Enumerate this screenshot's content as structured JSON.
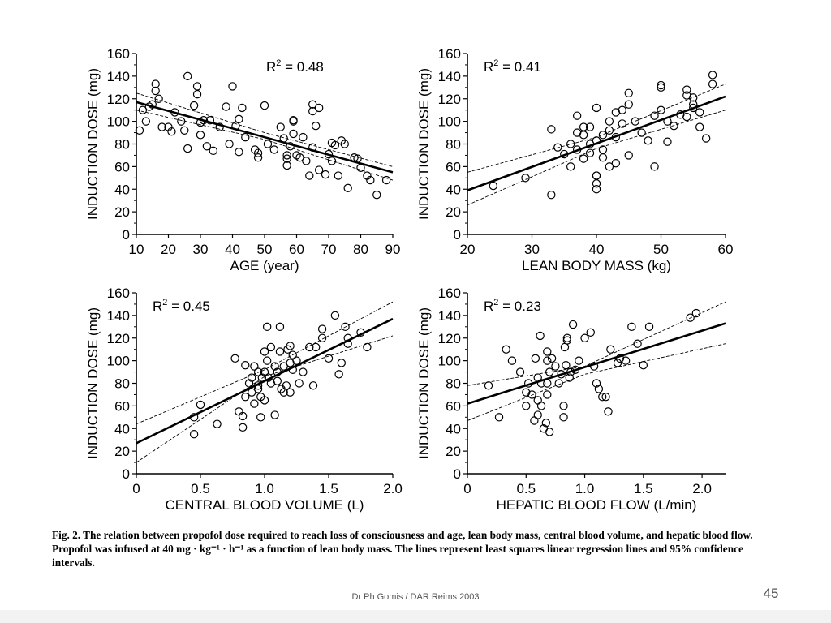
{
  "slide": {
    "caption": "Fig. 2. The relation between propofol dose required to reach loss of consciousness and age, lean body mass, central blood volume, and hepatic blood flow. Propofol was infused at 40 mg · kg⁻¹ · h⁻¹ as a function of lean body mass. The lines represent least squares linear regression lines and 95% confidence intervals.",
    "footer": "Dr Ph Gomis / DAR Reims 2003",
    "page_number": "45"
  },
  "chart_data": [
    {
      "type": "scatter",
      "ylabel": "INDUCTION DOSE (mg)",
      "xlabel": "AGE (year)",
      "r2_label": "R",
      "r2_sup": "2",
      "r2_value": " = 0.48",
      "xlim": [
        10,
        90
      ],
      "ylim": [
        0,
        160
      ],
      "xticks": [
        10,
        20,
        30,
        40,
        50,
        60,
        70,
        80,
        90
      ],
      "yticks": [
        0,
        20,
        40,
        60,
        80,
        100,
        120,
        140,
        160
      ],
      "regression": [
        [
          10,
          117
        ],
        [
          90,
          55
        ]
      ],
      "ci_upper": [
        [
          10,
          125
        ],
        [
          50,
          90
        ],
        [
          90,
          60
        ]
      ],
      "ci_lower": [
        [
          10,
          110
        ],
        [
          50,
          84
        ],
        [
          90,
          48
        ]
      ],
      "points": [
        [
          11,
          92
        ],
        [
          12,
          110
        ],
        [
          13,
          100
        ],
        [
          14,
          113
        ],
        [
          15,
          115
        ],
        [
          16,
          127
        ],
        [
          16,
          133
        ],
        [
          17,
          120
        ],
        [
          18,
          95
        ],
        [
          20,
          95
        ],
        [
          21,
          91
        ],
        [
          22,
          108
        ],
        [
          24,
          100
        ],
        [
          25,
          92
        ],
        [
          26,
          140
        ],
        [
          26,
          76
        ],
        [
          28,
          114
        ],
        [
          29,
          124
        ],
        [
          29,
          131
        ],
        [
          30,
          99
        ],
        [
          30,
          88
        ],
        [
          31,
          101
        ],
        [
          32,
          78
        ],
        [
          33,
          101
        ],
        [
          34,
          74
        ],
        [
          36,
          95
        ],
        [
          38,
          113
        ],
        [
          39,
          80
        ],
        [
          40,
          131
        ],
        [
          41,
          96
        ],
        [
          42,
          102
        ],
        [
          42,
          73
        ],
        [
          43,
          112
        ],
        [
          44,
          86
        ],
        [
          47,
          75
        ],
        [
          48,
          72
        ],
        [
          48,
          68
        ],
        [
          50,
          114
        ],
        [
          51,
          80
        ],
        [
          53,
          75
        ],
        [
          55,
          95
        ],
        [
          56,
          85
        ],
        [
          57,
          70
        ],
        [
          57,
          67
        ],
        [
          57,
          61
        ],
        [
          58,
          78
        ],
        [
          59,
          89
        ],
        [
          59,
          100
        ],
        [
          59,
          101
        ],
        [
          60,
          70
        ],
        [
          61,
          68
        ],
        [
          62,
          86
        ],
        [
          63,
          65
        ],
        [
          64,
          52
        ],
        [
          65,
          115
        ],
        [
          65,
          109
        ],
        [
          65,
          77
        ],
        [
          66,
          96
        ],
        [
          67,
          112
        ],
        [
          67,
          57
        ],
        [
          69,
          53
        ],
        [
          70,
          71
        ],
        [
          71,
          81
        ],
        [
          71,
          65
        ],
        [
          72,
          79
        ],
        [
          73,
          52
        ],
        [
          74,
          83
        ],
        [
          75,
          80
        ],
        [
          76,
          41
        ],
        [
          78,
          68
        ],
        [
          79,
          67
        ],
        [
          80,
          59
        ],
        [
          82,
          52
        ],
        [
          83,
          48
        ],
        [
          85,
          35
        ],
        [
          88,
          48
        ]
      ]
    },
    {
      "type": "scatter",
      "ylabel": "INDUCTION DOSE (mg)",
      "xlabel": "LEAN BODY MASS (kg)",
      "r2_label": "R",
      "r2_sup": "2",
      "r2_value": " = 0.41",
      "xlim": [
        20,
        60
      ],
      "ylim": [
        0,
        160
      ],
      "xticks": [
        20,
        30,
        40,
        50,
        60
      ],
      "yticks": [
        0,
        20,
        40,
        60,
        80,
        100,
        120,
        140,
        160
      ],
      "regression": [
        [
          20,
          39
        ],
        [
          60,
          122
        ]
      ],
      "ci_upper": [
        [
          20,
          55
        ],
        [
          40,
          86
        ],
        [
          60,
          133
        ]
      ],
      "ci_lower": [
        [
          20,
          26
        ],
        [
          40,
          76
        ],
        [
          60,
          110
        ]
      ],
      "points": [
        [
          24,
          43
        ],
        [
          29,
          50
        ],
        [
          33,
          35
        ],
        [
          33,
          93
        ],
        [
          34,
          77
        ],
        [
          35,
          71
        ],
        [
          36,
          60
        ],
        [
          36,
          80
        ],
        [
          37,
          90
        ],
        [
          37,
          75
        ],
        [
          37,
          105
        ],
        [
          38,
          95
        ],
        [
          38,
          88
        ],
        [
          38,
          67
        ],
        [
          39,
          72
        ],
        [
          39,
          95
        ],
        [
          39,
          80
        ],
        [
          40,
          83
        ],
        [
          40,
          52
        ],
        [
          40,
          52
        ],
        [
          40,
          45
        ],
        [
          40,
          40
        ],
        [
          40,
          112
        ],
        [
          41,
          75
        ],
        [
          41,
          88
        ],
        [
          41,
          68
        ],
        [
          42,
          100
        ],
        [
          42,
          92
        ],
        [
          42,
          60
        ],
        [
          43,
          63
        ],
        [
          43,
          86
        ],
        [
          43,
          108
        ],
        [
          44,
          110
        ],
        [
          44,
          98
        ],
        [
          45,
          70
        ],
        [
          45,
          115
        ],
        [
          45,
          125
        ],
        [
          46,
          100
        ],
        [
          47,
          90
        ],
        [
          48,
          83
        ],
        [
          49,
          105
        ],
        [
          49,
          60
        ],
        [
          50,
          110
        ],
        [
          50,
          130
        ],
        [
          50,
          132
        ],
        [
          51,
          100
        ],
        [
          51,
          82
        ],
        [
          52,
          96
        ],
        [
          53,
          106
        ],
        [
          54,
          123
        ],
        [
          54,
          104
        ],
        [
          54,
          128
        ],
        [
          55,
          115
        ],
        [
          55,
          121
        ],
        [
          55,
          112
        ],
        [
          56,
          108
        ],
        [
          56,
          95
        ],
        [
          57,
          85
        ],
        [
          58,
          133
        ],
        [
          58,
          141
        ]
      ]
    },
    {
      "type": "scatter",
      "ylabel": "INDUCTION DOSE (mg)",
      "xlabel": "CENTRAL BLOOD VOLUME (L)",
      "r2_label": "R",
      "r2_sup": "2",
      "r2_value": " = 0.45",
      "xlim": [
        0,
        2.0
      ],
      "ylim": [
        0,
        160
      ],
      "xticks": [
        0,
        0.5,
        1.0,
        1.5,
        2.0
      ],
      "xticklabels": [
        "0",
        "0.5",
        "1.0",
        "1.5",
        "2.0"
      ],
      "yticks": [
        0,
        20,
        40,
        60,
        80,
        100,
        120,
        140,
        160
      ],
      "regression": [
        [
          0,
          27
        ],
        [
          2.0,
          137
        ]
      ],
      "ci_upper": [
        [
          0,
          44
        ],
        [
          1.0,
          92
        ],
        [
          2.0,
          152
        ]
      ],
      "ci_lower": [
        [
          0,
          10
        ],
        [
          1.0,
          86
        ],
        [
          2.0,
          122
        ]
      ],
      "points": [
        [
          0.45,
          35
        ],
        [
          0.45,
          50
        ],
        [
          0.5,
          61
        ],
        [
          0.63,
          44
        ],
        [
          0.77,
          102
        ],
        [
          0.8,
          55
        ],
        [
          0.83,
          41
        ],
        [
          0.83,
          51
        ],
        [
          0.85,
          68
        ],
        [
          0.85,
          96
        ],
        [
          0.88,
          80
        ],
        [
          0.9,
          85
        ],
        [
          0.9,
          72
        ],
        [
          0.92,
          95
        ],
        [
          0.92,
          62
        ],
        [
          0.95,
          90
        ],
        [
          0.95,
          75
        ],
        [
          0.95,
          78
        ],
        [
          0.97,
          50
        ],
        [
          0.97,
          68
        ],
        [
          0.98,
          85
        ],
        [
          1.0,
          65
        ],
        [
          1.0,
          90
        ],
        [
          1.0,
          108
        ],
        [
          1.02,
          100
        ],
        [
          1.02,
          130
        ],
        [
          1.03,
          85
        ],
        [
          1.05,
          80
        ],
        [
          1.05,
          112
        ],
        [
          1.08,
          95
        ],
        [
          1.08,
          52
        ],
        [
          1.1,
          82
        ],
        [
          1.1,
          90
        ],
        [
          1.12,
          108
        ],
        [
          1.12,
          130
        ],
        [
          1.13,
          75
        ],
        [
          1.15,
          95
        ],
        [
          1.15,
          72
        ],
        [
          1.17,
          78
        ],
        [
          1.18,
          110
        ],
        [
          1.2,
          72
        ],
        [
          1.2,
          98
        ],
        [
          1.2,
          113
        ],
        [
          1.22,
          92
        ],
        [
          1.22,
          105
        ],
        [
          1.25,
          100
        ],
        [
          1.27,
          80
        ],
        [
          1.3,
          90
        ],
        [
          1.35,
          112
        ],
        [
          1.38,
          78
        ],
        [
          1.4,
          112
        ],
        [
          1.45,
          120
        ],
        [
          1.45,
          128
        ],
        [
          1.5,
          102
        ],
        [
          1.55,
          140
        ],
        [
          1.58,
          88
        ],
        [
          1.6,
          98
        ],
        [
          1.63,
          130
        ],
        [
          1.65,
          115
        ],
        [
          1.65,
          120
        ],
        [
          1.75,
          125
        ],
        [
          1.8,
          112
        ]
      ]
    },
    {
      "type": "scatter",
      "ylabel": "INDUCTION DOSE (mg)",
      "xlabel": "HEPATIC BLOOD FLOW (L/min)",
      "r2_label": "R",
      "r2_sup": "2",
      "r2_value": " = 0.23",
      "xlim": [
        0,
        2.2
      ],
      "ylim": [
        0,
        160
      ],
      "xticks": [
        0,
        0.5,
        1.0,
        1.5,
        2.0
      ],
      "xticklabels": [
        "0",
        "0.5",
        "1.0",
        "1.5",
        "2.0"
      ],
      "yticks": [
        0,
        20,
        40,
        60,
        80,
        100,
        120,
        140,
        160
      ],
      "regression": [
        [
          0,
          62
        ],
        [
          2.2,
          133
        ]
      ],
      "ci_upper": [
        [
          0,
          78
        ],
        [
          1.0,
          95
        ],
        [
          2.2,
          152
        ]
      ],
      "ci_lower": [
        [
          0,
          47
        ],
        [
          1.0,
          88
        ],
        [
          2.2,
          115
        ]
      ],
      "points": [
        [
          0.18,
          78
        ],
        [
          0.27,
          50
        ],
        [
          0.33,
          110
        ],
        [
          0.38,
          100
        ],
        [
          0.45,
          90
        ],
        [
          0.5,
          72
        ],
        [
          0.5,
          60
        ],
        [
          0.52,
          80
        ],
        [
          0.55,
          70
        ],
        [
          0.57,
          47
        ],
        [
          0.58,
          102
        ],
        [
          0.6,
          65
        ],
        [
          0.6,
          85
        ],
        [
          0.6,
          52
        ],
        [
          0.62,
          122
        ],
        [
          0.63,
          80
        ],
        [
          0.63,
          60
        ],
        [
          0.65,
          40
        ],
        [
          0.67,
          45
        ],
        [
          0.68,
          70
        ],
        [
          0.68,
          80
        ],
        [
          0.68,
          100
        ],
        [
          0.68,
          108
        ],
        [
          0.7,
          37
        ],
        [
          0.7,
          90
        ],
        [
          0.72,
          102
        ],
        [
          0.75,
          95
        ],
        [
          0.78,
          80
        ],
        [
          0.8,
          88
        ],
        [
          0.82,
          50
        ],
        [
          0.82,
          60
        ],
        [
          0.83,
          112
        ],
        [
          0.84,
          96
        ],
        [
          0.85,
          120
        ],
        [
          0.85,
          118
        ],
        [
          0.87,
          85
        ],
        [
          0.88,
          90
        ],
        [
          0.9,
          132
        ],
        [
          0.92,
          92
        ],
        [
          0.95,
          100
        ],
        [
          1.0,
          120
        ],
        [
          1.05,
          125
        ],
        [
          1.08,
          95
        ],
        [
          1.1,
          80
        ],
        [
          1.12,
          75
        ],
        [
          1.15,
          68
        ],
        [
          1.18,
          68
        ],
        [
          1.2,
          55
        ],
        [
          1.22,
          110
        ],
        [
          1.28,
          98
        ],
        [
          1.3,
          102
        ],
        [
          1.35,
          100
        ],
        [
          1.4,
          130
        ],
        [
          1.45,
          115
        ],
        [
          1.5,
          96
        ],
        [
          1.55,
          130
        ],
        [
          1.9,
          138
        ],
        [
          1.95,
          142
        ]
      ]
    }
  ]
}
